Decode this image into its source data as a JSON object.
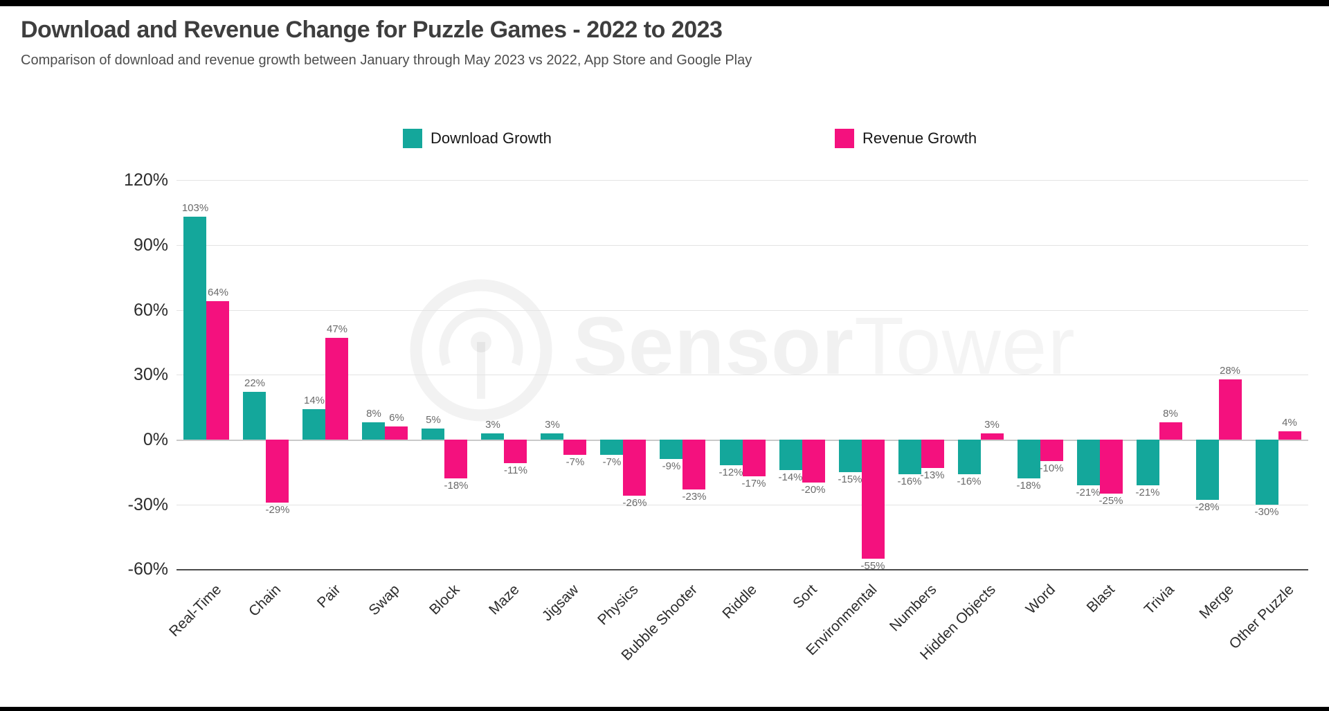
{
  "page": {
    "title": "Download and Revenue Change for Puzzle Games - 2022 to 2023",
    "subtitle": "Comparison of download and revenue growth between January through May 2023 vs 2022, App Store and Google Play"
  },
  "colors": {
    "download": "#14A79B",
    "revenue": "#F4117E",
    "gridline": "#e3e3e3",
    "zero_line": "#c9c9c9",
    "axis_line": "#4a4a4a"
  },
  "legend": {
    "items": [
      {
        "label": "Download Growth",
        "color": "#14A79B"
      },
      {
        "label": "Revenue Growth",
        "color": "#F4117E"
      }
    ]
  },
  "watermark": {
    "bold_part": "Sensor",
    "light_part": "Tower"
  },
  "chart_data": {
    "type": "bar",
    "title": "Download and Revenue Change for Puzzle Games - 2022 to 2023",
    "subtitle": "Comparison of download and revenue growth between January through May 2023 vs 2022, App Store and Google Play",
    "categories": [
      "Real-Time",
      "Chain",
      "Pair",
      "Swap",
      "Block",
      "Maze",
      "Jigsaw",
      "Physics",
      "Bubble Shooter",
      "Riddle",
      "Sort",
      "Environmental",
      "Numbers",
      "Hidden Objects",
      "Word",
      "Blast",
      "Trivia",
      "Merge",
      "Other Puzzle"
    ],
    "series": [
      {
        "name": "Download Growth",
        "color": "#14A79B",
        "values": [
          103,
          22,
          14,
          8,
          5,
          3,
          3,
          -7,
          -9,
          -12,
          -14,
          -15,
          -16,
          -16,
          -18,
          -21,
          -21,
          -28,
          -30
        ]
      },
      {
        "name": "Revenue Growth",
        "color": "#F4117E",
        "values": [
          64,
          -29,
          47,
          6,
          -18,
          -11,
          -7,
          -26,
          -23,
          -17,
          -20,
          -55,
          -13,
          3,
          -10,
          -25,
          8,
          28,
          4
        ]
      }
    ],
    "data_labels": [
      [
        "103%",
        "22%",
        "14%",
        "8%",
        "5%",
        "3%",
        "3%",
        "-7%",
        "-9%",
        "-12%",
        "-14%",
        "-15%",
        "-16%",
        "-16%",
        "-18%",
        "-21%",
        "-21%",
        "-28%",
        "-30%"
      ],
      [
        "64%",
        "-29%",
        "47%",
        "6%",
        "-18%",
        "-11%",
        "-7%",
        "-26%",
        "-23%",
        "-17%",
        "-20%",
        "-55%",
        "-13%",
        "3%",
        "-10%",
        "-25%",
        "8%",
        "28%",
        "4%"
      ]
    ],
    "y_ticks": [
      120,
      90,
      60,
      30,
      0,
      -30,
      -60
    ],
    "y_tick_labels": [
      "120%",
      "90%",
      "60%",
      "30%",
      "0%",
      "-30%",
      "-60%"
    ],
    "ylim": [
      -60,
      120
    ],
    "ylabel": "",
    "xlabel": "",
    "grid": true,
    "legend_position": "top",
    "category_label_rotation_deg": -45
  }
}
